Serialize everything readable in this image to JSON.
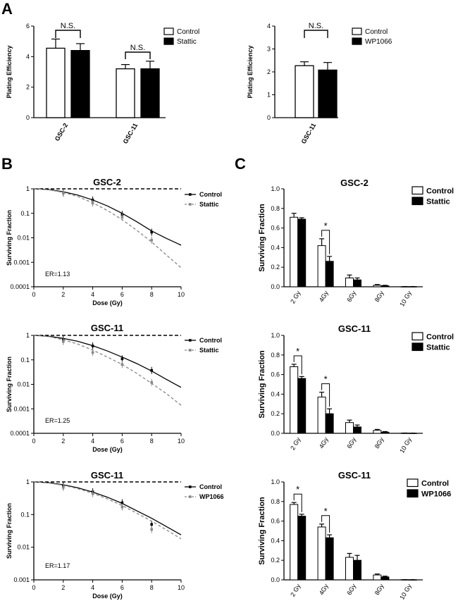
{
  "panel_labels": {
    "a": "A",
    "b": "B",
    "c": "C"
  },
  "chart_data": [
    {
      "id": "a1",
      "type": "bar",
      "ylabel": "Plating Efficiency",
      "ylim": [
        0,
        6
      ],
      "yticks": [
        "0",
        "2",
        "4",
        "6"
      ],
      "categories": [
        "GSC-2",
        "GSC-11"
      ],
      "series": [
        {
          "name": "Control",
          "values": [
            4.55,
            3.2
          ],
          "errors": [
            0.6,
            0.28
          ],
          "fill": "#ffffff"
        },
        {
          "name": "Stattic",
          "values": [
            4.4,
            3.2
          ],
          "errors": [
            0.45,
            0.5
          ],
          "fill": "#000000"
        }
      ],
      "annotations": [
        {
          "text": "N.S.",
          "category": 0
        },
        {
          "text": "N.S.",
          "category": 1
        }
      ],
      "legend": "top-right"
    },
    {
      "id": "a2",
      "type": "bar",
      "ylabel": "Plating Efficiency",
      "ylim": [
        0,
        4
      ],
      "yticks": [
        "0",
        "1",
        "2",
        "3",
        "4"
      ],
      "categories": [
        "GSC-11"
      ],
      "series": [
        {
          "name": "Control",
          "values": [
            2.27
          ],
          "errors": [
            0.17
          ],
          "fill": "#ffffff"
        },
        {
          "name": "WP1066",
          "values": [
            2.08
          ],
          "errors": [
            0.33
          ],
          "fill": "#000000"
        }
      ],
      "annotations": [
        {
          "text": "N.S.",
          "category": 0
        }
      ],
      "legend": "top-right"
    },
    {
      "id": "b1",
      "type": "line",
      "log_scale_y": true,
      "title": "GSC-2",
      "xlabel": "Dose (Gy)",
      "ylabel": "Surviving Fraction",
      "xlim": [
        0,
        10
      ],
      "ylim": [
        0.0001,
        1
      ],
      "xticks": [
        "0",
        "2",
        "4",
        "6",
        "8",
        "10"
      ],
      "yticks": [
        "0.0001",
        "0.001",
        "0.01",
        "0.1",
        "1"
      ],
      "er_text": "ER=1.13",
      "series": [
        {
          "name": "Control",
          "x": [
            0,
            2,
            4,
            6,
            8
          ],
          "y": [
            1,
            0.68,
            0.35,
            0.09,
            0.017
          ],
          "fit": [
            [
              0,
              1
            ],
            [
              1,
              0.94
            ],
            [
              2,
              0.76
            ],
            [
              3,
              0.55
            ],
            [
              4,
              0.35
            ],
            [
              5,
              0.2
            ],
            [
              6,
              0.1
            ],
            [
              7,
              0.045
            ],
            [
              8,
              0.019
            ],
            [
              9,
              0.0095
            ],
            [
              10,
              0.005
            ]
          ]
        },
        {
          "name": "Stattic",
          "x": [
            0,
            2,
            4,
            6,
            8
          ],
          "y": [
            1,
            0.68,
            0.26,
            0.07,
            0.008
          ],
          "fit": [
            [
              0,
              1
            ],
            [
              1,
              0.92
            ],
            [
              2,
              0.72
            ],
            [
              3,
              0.48
            ],
            [
              4,
              0.27
            ],
            [
              5,
              0.13
            ],
            [
              6,
              0.055
            ],
            [
              7,
              0.02
            ],
            [
              8,
              0.0067
            ],
            [
              9,
              0.002
            ],
            [
              10,
              0.0006
            ]
          ]
        }
      ],
      "legend": "top-right"
    },
    {
      "id": "b2",
      "type": "line",
      "log_scale_y": true,
      "title": "GSC-11",
      "xlabel": "Dose (Gy)",
      "ylabel": "Surviving Fraction",
      "xlim": [
        0,
        10
      ],
      "ylim": [
        0.0001,
        1
      ],
      "xticks": [
        "0",
        "2",
        "4",
        "6",
        "8",
        "10"
      ],
      "yticks": [
        "0.0001",
        "0.001",
        "0.01",
        "0.1",
        "1"
      ],
      "er_text": "ER=1.25",
      "series": [
        {
          "name": "Control",
          "x": [
            0,
            2,
            4,
            6,
            8
          ],
          "y": [
            1,
            0.68,
            0.37,
            0.11,
            0.037
          ],
          "fit": [
            [
              0,
              1
            ],
            [
              1,
              0.93
            ],
            [
              2,
              0.75
            ],
            [
              3,
              0.57
            ],
            [
              4,
              0.38
            ],
            [
              5,
              0.23
            ],
            [
              6,
              0.13
            ],
            [
              7,
              0.07
            ],
            [
              8,
              0.035
            ],
            [
              9,
              0.016
            ],
            [
              10,
              0.0075
            ]
          ]
        },
        {
          "name": "Stattic",
          "x": [
            0,
            2,
            4,
            6,
            8
          ],
          "y": [
            1,
            0.56,
            0.2,
            0.065,
            0.012
          ],
          "fit": [
            [
              0,
              1
            ],
            [
              1,
              0.9
            ],
            [
              2,
              0.66
            ],
            [
              3,
              0.44
            ],
            [
              4,
              0.25
            ],
            [
              5,
              0.13
            ],
            [
              6,
              0.065
            ],
            [
              7,
              0.028
            ],
            [
              8,
              0.011
            ],
            [
              9,
              0.0042
            ],
            [
              10,
              0.0014
            ]
          ]
        }
      ],
      "legend": "top-right"
    },
    {
      "id": "b3",
      "type": "line",
      "log_scale_y": true,
      "title": "GSC-11",
      "xlabel": "Dose (Gy)",
      "ylabel": "Surviving Fraction",
      "xlim": [
        0,
        10
      ],
      "ylim": [
        0.001,
        1
      ],
      "xticks": [
        "0",
        "2",
        "4",
        "6",
        "8",
        "10"
      ],
      "yticks": [
        "0.001",
        "0.01",
        "0.1",
        "1"
      ],
      "er_text": "ER=1.17",
      "series": [
        {
          "name": "Control",
          "x": [
            0,
            2,
            4,
            6,
            8
          ],
          "y": [
            1,
            0.75,
            0.5,
            0.23,
            0.05
          ],
          "fit": [
            [
              0,
              1
            ],
            [
              1,
              0.95
            ],
            [
              2,
              0.82
            ],
            [
              3,
              0.66
            ],
            [
              4,
              0.49
            ],
            [
              5,
              0.34
            ],
            [
              6,
              0.22
            ],
            [
              7,
              0.13
            ],
            [
              8,
              0.077
            ],
            [
              9,
              0.043
            ],
            [
              10,
              0.024
            ]
          ]
        },
        {
          "name": "WP1066",
          "x": [
            0,
            2,
            4,
            6,
            8
          ],
          "y": [
            1,
            0.68,
            0.44,
            0.17,
            0.035
          ],
          "fit": [
            [
              0,
              1
            ],
            [
              1,
              0.93
            ],
            [
              2,
              0.79
            ],
            [
              3,
              0.62
            ],
            [
              4,
              0.45
            ],
            [
              5,
              0.3
            ],
            [
              6,
              0.19
            ],
            [
              7,
              0.11
            ],
            [
              8,
              0.063
            ],
            [
              9,
              0.034
            ],
            [
              10,
              0.018
            ]
          ]
        }
      ],
      "legend": "top-right"
    },
    {
      "id": "c1",
      "type": "bar",
      "title": "GSC-2",
      "ylabel": "Surviving Fraction",
      "ylim": [
        0,
        1
      ],
      "yticks": [
        "0.0",
        "0.2",
        "0.4",
        "0.6",
        "0.8",
        "1.0"
      ],
      "categories": [
        "2 Gy",
        "4Gy",
        "6Gy",
        "8Gy",
        "10 Gy"
      ],
      "series": [
        {
          "name": "Control",
          "values": [
            0.71,
            0.42,
            0.09,
            0.015,
            0.001
          ],
          "errors": [
            0.04,
            0.07,
            0.03,
            0.008,
            0.001
          ],
          "fill": "#ffffff"
        },
        {
          "name": "Stattic",
          "values": [
            0.69,
            0.26,
            0.07,
            0.01,
            0.001
          ],
          "errors": [
            0.015,
            0.05,
            0.02,
            0.005,
            0.001
          ],
          "fill": "#000000"
        }
      ],
      "significance": [
        {
          "text": "*",
          "category": 1
        }
      ],
      "legend": "top-right"
    },
    {
      "id": "c2",
      "type": "bar",
      "title": "GSC-11",
      "ylabel": "Surviving Fraction",
      "ylim": [
        0,
        1
      ],
      "yticks": [
        "0.0",
        "0.2",
        "0.4",
        "0.6",
        "0.8",
        "1.0"
      ],
      "categories": [
        "2 Gy",
        "4Gy",
        "6Gy",
        "8Gy",
        "10 Gy"
      ],
      "series": [
        {
          "name": "Control",
          "values": [
            0.68,
            0.37,
            0.11,
            0.03,
            0.002
          ],
          "errors": [
            0.025,
            0.05,
            0.025,
            0.01,
            0.001
          ],
          "fill": "#ffffff"
        },
        {
          "name": "Stattic",
          "values": [
            0.56,
            0.2,
            0.065,
            0.012,
            0.001
          ],
          "errors": [
            0.02,
            0.05,
            0.02,
            0.006,
            0.001
          ],
          "fill": "#000000"
        }
      ],
      "significance": [
        {
          "text": "*",
          "category": 0
        },
        {
          "text": "*",
          "category": 1
        }
      ],
      "legend": "top-right"
    },
    {
      "id": "c3",
      "type": "bar",
      "title": "GSC-11",
      "ylabel": "Surviving Fraction",
      "ylim": [
        0,
        1
      ],
      "yticks": [
        "0.0",
        "0.2",
        "0.4",
        "0.6",
        "0.8",
        "1.0"
      ],
      "categories": [
        "2 Gy",
        "4Gy",
        "6Gy",
        "8Gy",
        "10 Gy"
      ],
      "series": [
        {
          "name": "Control",
          "values": [
            0.77,
            0.54,
            0.23,
            0.05,
            0.002
          ],
          "errors": [
            0.02,
            0.03,
            0.04,
            0.01,
            0.001
          ],
          "fill": "#ffffff"
        },
        {
          "name": "WP1066",
          "values": [
            0.65,
            0.43,
            0.2,
            0.03,
            0.001
          ],
          "errors": [
            0.02,
            0.03,
            0.05,
            0.008,
            0.001
          ],
          "fill": "#000000"
        }
      ],
      "significance": [
        {
          "text": "*",
          "category": 0
        },
        {
          "text": "*",
          "category": 1
        }
      ],
      "legend": "top-right"
    }
  ]
}
